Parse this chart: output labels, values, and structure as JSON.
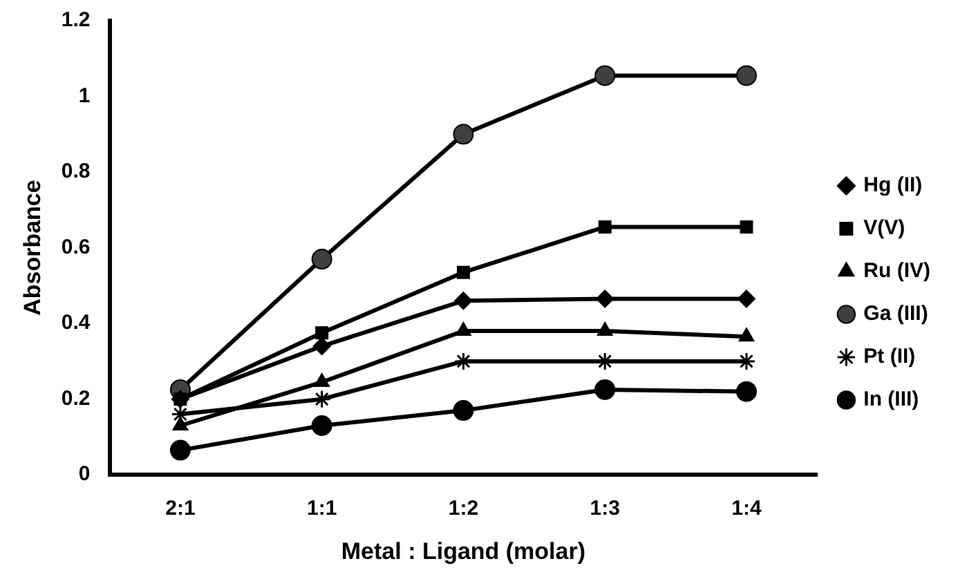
{
  "chart_data": {
    "type": "line",
    "xlabel": "Metal : Ligand (molar)",
    "ylabel": "Absorbance",
    "categories": [
      "2:1",
      "1:1",
      "1:2",
      "1:3",
      "1:4"
    ],
    "series": [
      {
        "name": "Hg (II)",
        "color": "#000000",
        "marker": "diamond",
        "values": [
          0.2,
          0.34,
          0.46,
          0.465,
          0.465
        ]
      },
      {
        "name": "V(V)",
        "color": "#000000",
        "marker": "square",
        "values": [
          0.2,
          0.375,
          0.535,
          0.655,
          0.655
        ]
      },
      {
        "name": "Ru (IV)",
        "color": "#000000",
        "marker": "triangle",
        "values": [
          0.13,
          0.245,
          0.38,
          0.38,
          0.365
        ]
      },
      {
        "name": "Ga (III)",
        "color": "#404040",
        "marker": "circle",
        "values": [
          0.225,
          0.57,
          0.9,
          1.055,
          1.055
        ]
      },
      {
        "name": "Pt (II)",
        "color": "#000000",
        "marker": "cross",
        "values": [
          0.16,
          0.2,
          0.3,
          0.3,
          0.3
        ]
      },
      {
        "name": "In (III)",
        "color": "#000000",
        "marker": "circle",
        "values": [
          0.065,
          0.13,
          0.17,
          0.225,
          0.22
        ]
      }
    ],
    "ylim": [
      0,
      1.2
    ],
    "yticks": [
      0,
      0.2,
      0.4,
      0.6,
      0.8,
      1,
      1.2
    ],
    "grid": false,
    "legend": "right",
    "line_style": "solid"
  }
}
